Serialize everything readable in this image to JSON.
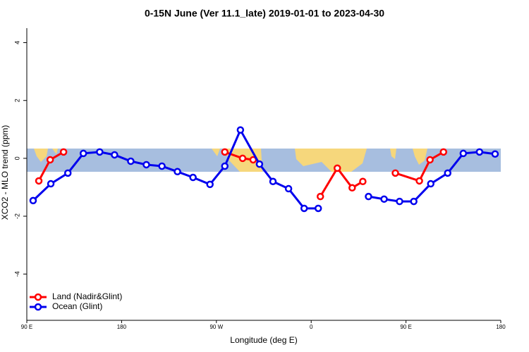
{
  "chart_data": {
    "type": "line",
    "title": "0-15N June (Ver 11.1_late)   2019-01-01 to 2023-04-30",
    "x_label": "Longitude (deg E)",
    "y_label": "XCO2 - MLO trend (ppm)",
    "xlim": [
      90,
      540
    ],
    "xticks": [
      {
        "value": 90,
        "label": "90 E"
      },
      {
        "value": 180,
        "label": "180"
      },
      {
        "value": 270,
        "label": "90 W"
      },
      {
        "value": 360,
        "label": "0"
      },
      {
        "value": 450,
        "label": "90 E"
      },
      {
        "value": 540,
        "label": "180"
      }
    ],
    "ylim": [
      -5.6,
      4.5
    ],
    "yticks": [
      -4,
      -2,
      0,
      2,
      4
    ],
    "legend": "bottom-left",
    "series": [
      {
        "name": "Land (Nadir&Glint)",
        "color": "#ff0000",
        "x": [
          101.4,
          112.2,
          124.9,
          null,
          278.0,
          294.9,
          304.9,
          null,
          368.7,
          384.8,
          398.9,
          409.0,
          null,
          439.9,
          462.7,
          472.8,
          485.6
        ],
        "values": [
          -0.78,
          -0.05,
          0.22,
          null,
          0.22,
          0.0,
          -0.05,
          null,
          -1.32,
          -0.34,
          -1.02,
          -0.8,
          null,
          -0.51,
          -0.78,
          -0.05,
          0.22
        ]
      },
      {
        "name": "Ocean (Glint)",
        "color": "#0000ee",
        "x": [
          96.0,
          112.8,
          129.0,
          143.7,
          159.2,
          173.3,
          188.7,
          203.5,
          218.3,
          233.0,
          247.8,
          263.9,
          278.0,
          292.8,
          310.9,
          323.7,
          338.5,
          353.3,
          366.7,
          null,
          414.4,
          429.2,
          443.9,
          457.4,
          473.5,
          489.6,
          504.4,
          519.8,
          534.6
        ],
        "values": [
          -1.46,
          -0.88,
          -0.51,
          0.17,
          0.22,
          0.12,
          -0.1,
          -0.22,
          -0.27,
          -0.46,
          -0.66,
          -0.9,
          -0.27,
          0.98,
          -0.2,
          -0.8,
          -1.05,
          -1.73,
          -1.73,
          null,
          -1.32,
          -1.41,
          -1.49,
          -1.49,
          -0.88,
          -0.51,
          0.17,
          0.22,
          0.15
        ]
      }
    ]
  }
}
